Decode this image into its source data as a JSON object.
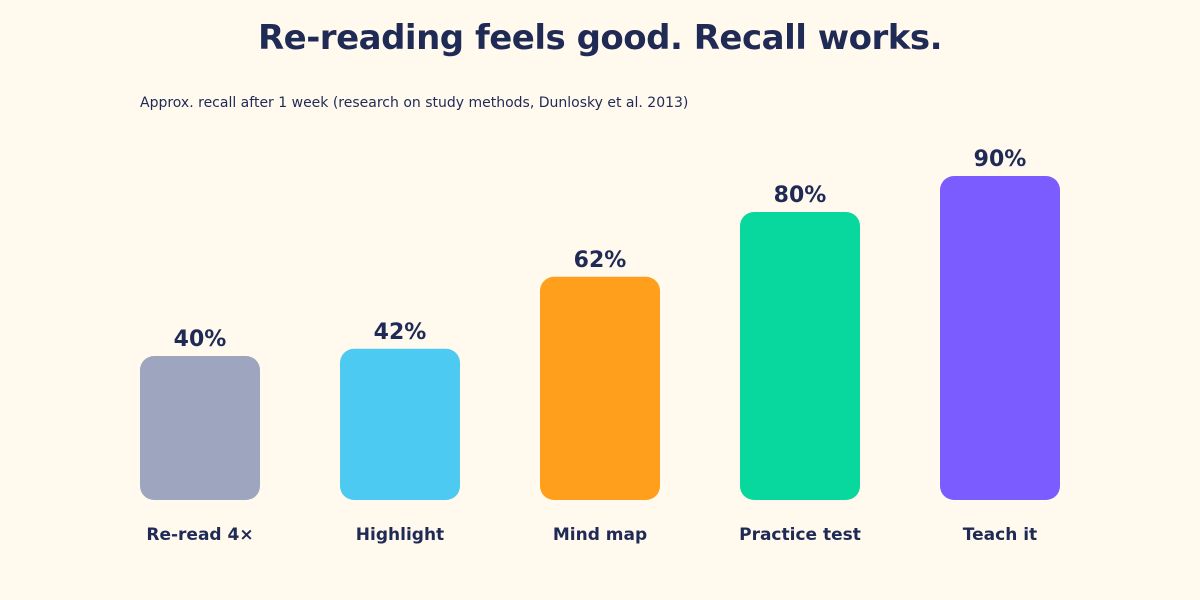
{
  "chart_data": {
    "type": "bar",
    "title": "Re-reading feels good. Recall works.",
    "subtitle": "Approx. recall after 1 week (research on study methods, Dunlosky et al. 2013)",
    "categories": [
      "Re-read 4×",
      "Highlight",
      "Mind map",
      "Practice test",
      "Teach it"
    ],
    "values": [
      40,
      42,
      62,
      80,
      90
    ],
    "value_labels": [
      "40%",
      "42%",
      "62%",
      "80%",
      "90%"
    ],
    "colors": [
      "#9ea6bf",
      "#4ccaf2",
      "#ff9f1c",
      "#08d89e",
      "#7b5cff"
    ],
    "ylim": [
      0,
      100
    ],
    "xlabel": "",
    "ylabel": "",
    "grid": false,
    "legend": "none"
  }
}
